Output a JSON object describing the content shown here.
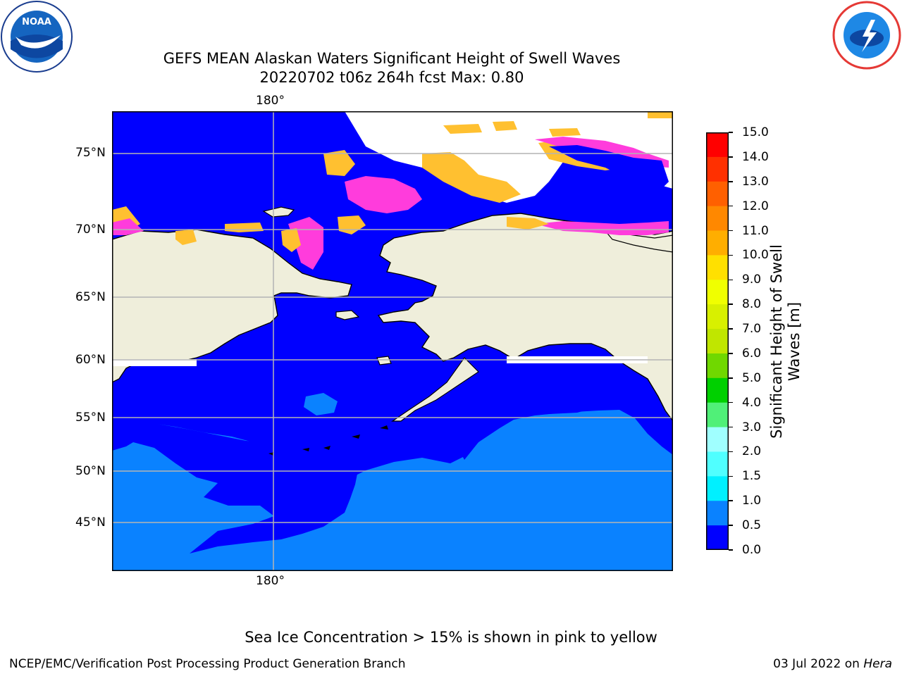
{
  "title_line1": "GEFS MEAN Alaskan Waters Significant Height of Swell Waves",
  "title_line2": "20220702 t06z 264h fcst   Max: 0.80",
  "logos": {
    "left": "noaa-logo",
    "right": "nws-logo"
  },
  "map": {
    "lon_label_top": "180°",
    "lon_label_bottom": "180°",
    "lat_labels": [
      "75°N",
      "70°N",
      "65°N",
      "60°N",
      "55°N",
      "50°N",
      "45°N"
    ],
    "colors": {
      "land": "#efeedb",
      "ocean_low": "#0000ff",
      "ocean_mid": "#0a82ff",
      "ice_pink": "#ff3cdc",
      "ice_yellow": "#ffc030",
      "coast": "#000000",
      "grid": "#b4b4b4"
    }
  },
  "colorbar": {
    "title": "Significant Height of Swell Waves [m]",
    "levels": [
      "15.0",
      "14.0",
      "13.0",
      "12.0",
      "11.0",
      "10.0",
      "9.0",
      "8.0",
      "7.0",
      "6.0",
      "5.0",
      "4.0",
      "3.0",
      "2.0",
      "1.5",
      "1.0",
      "0.5",
      "0.0"
    ],
    "colors": [
      "#ff0000",
      "#ff3000",
      "#ff6000",
      "#ff8800",
      "#ffae00",
      "#ffe000",
      "#f0ff00",
      "#d8f000",
      "#c0e600",
      "#70d800",
      "#00d000",
      "#50f078",
      "#a0ffff",
      "#50ffff",
      "#00f0ff",
      "#0a82ff",
      "#0000ff"
    ]
  },
  "footer": {
    "note": "Sea Ice Concentration > 15% is shown in pink to yellow",
    "left": "NCEP/EMC/Verification Post Processing Product Generation Branch",
    "right_date": "03 Jul 2022 on ",
    "right_host": "Hera"
  }
}
